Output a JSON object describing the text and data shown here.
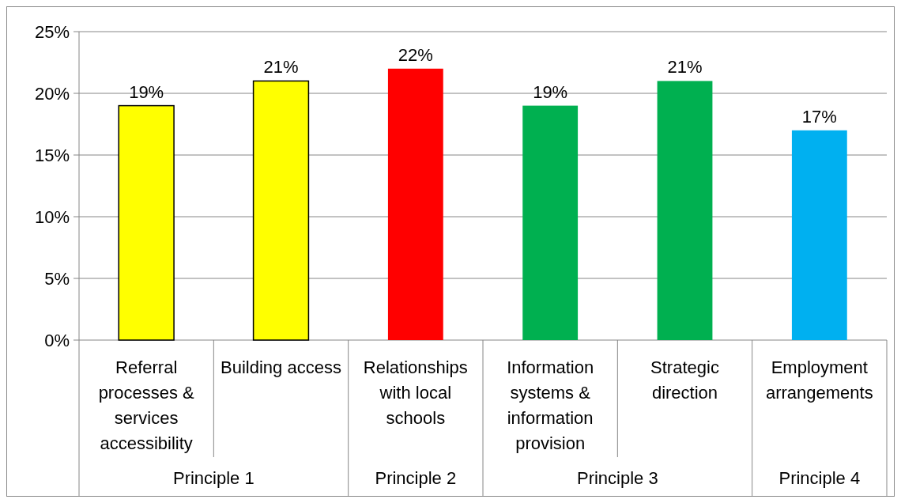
{
  "chart_data": {
    "type": "bar",
    "categories": [
      "Referral processes & services accessibility",
      "Building access",
      "Relationships with local schools",
      "Information systems & information provision",
      "Strategic direction",
      "Employment arrangements"
    ],
    "values": [
      19,
      21,
      22,
      19,
      21,
      17
    ],
    "colors": [
      "#ffff00",
      "#ffff00",
      "#ff0000",
      "#00b050",
      "#00b050",
      "#00b0f0"
    ],
    "value_labels": [
      "19%",
      "21%",
      "22%",
      "19%",
      "21%",
      "17%"
    ],
    "ylim": [
      0,
      25
    ],
    "yticks": [
      {
        "value": 0,
        "label": "0%"
      },
      {
        "value": 5,
        "label": "5%"
      },
      {
        "value": 10,
        "label": "10%"
      },
      {
        "value": 15,
        "label": "15%"
      },
      {
        "value": 20,
        "label": "20%"
      },
      {
        "value": 25,
        "label": "25%"
      }
    ],
    "grid": "y",
    "annotations": [
      "Principle 1",
      "Principle 2",
      "Principle 3",
      "Principle 4"
    ]
  }
}
